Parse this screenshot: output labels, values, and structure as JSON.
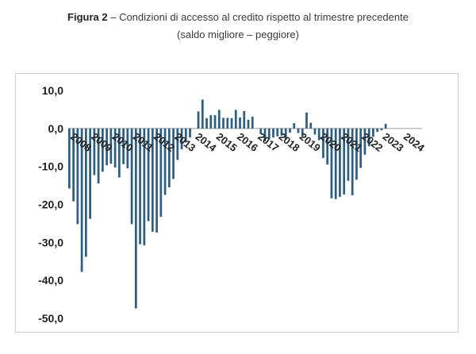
{
  "caption": {
    "bold": "Figura 2",
    "rest": " – Condizioni di accesso al credito rispetto al trimestre precedente",
    "line2": "(saldo migliore – peggiore)"
  },
  "colors": {
    "bar": "#2f5f80",
    "zero_line": "#999999",
    "axis_text": "#222222"
  },
  "chart_data": {
    "type": "bar",
    "title": "",
    "xlabel": "",
    "ylabel": "",
    "ylim": [
      -50,
      10
    ],
    "yticks": [
      10,
      0,
      -10,
      -20,
      -30,
      -40,
      -50
    ],
    "ytick_labels": [
      "10,0",
      "0,0",
      "-10,0",
      "-20,0",
      "-30,0",
      "-40,0",
      "-50,0"
    ],
    "grid": false,
    "legend": "none",
    "year_labels": [
      "2008",
      "2009",
      "2010",
      "2011",
      "2012",
      "2013",
      "2014",
      "2015",
      "2016",
      "2017",
      "2018",
      "2019",
      "2020",
      "2021",
      "2022",
      "2023",
      "2024"
    ],
    "categories": [
      "2008",
      "",
      "",
      "",
      "",
      "",
      "",
      "",
      "",
      "",
      "2009",
      "",
      "",
      "",
      "",
      "",
      "",
      "",
      "",
      "",
      "2010",
      "",
      "",
      "",
      "",
      "",
      "",
      "",
      "",
      "",
      "2011",
      "",
      "",
      "",
      "",
      "",
      "",
      "",
      "",
      "",
      "2012",
      "",
      "",
      "",
      "",
      "",
      "",
      "",
      "",
      "",
      "2013",
      "",
      "",
      "",
      "",
      "",
      "",
      "",
      "",
      "",
      "2014",
      "",
      "",
      "",
      "",
      "",
      "",
      "",
      "",
      "",
      "2015",
      "",
      "",
      "",
      "",
      "",
      "",
      "",
      "",
      "",
      "2016",
      "",
      "",
      "",
      "",
      "",
      "",
      "",
      "",
      "",
      "2017",
      "",
      "",
      "",
      "",
      "",
      "",
      "",
      "",
      "",
      "2018",
      "",
      "",
      "",
      "",
      "",
      "",
      "",
      "",
      "",
      "2019",
      "",
      "",
      "",
      "",
      "",
      "",
      "",
      "",
      "",
      "2020",
      "",
      "",
      "",
      "",
      "",
      "",
      "",
      "",
      "",
      "2021",
      "",
      "",
      "",
      "",
      "",
      "",
      "",
      "",
      "",
      "2022",
      "",
      "",
      "",
      "",
      "",
      "",
      "",
      "",
      "",
      "2023",
      "",
      "",
      "",
      "",
      "",
      "",
      "",
      "",
      "",
      "2024",
      "",
      "",
      "",
      "",
      "",
      "",
      "",
      "",
      ""
    ],
    "values": [
      -15.8,
      0,
      -19.2,
      0,
      -25.2,
      0,
      -37.8,
      0,
      -33.8,
      0,
      -23.8,
      0,
      -12.3,
      0,
      -14.5,
      0,
      -11.4,
      0,
      -9.7,
      0,
      -9.3,
      0,
      -10.3,
      0,
      -12.9,
      0,
      -9.4,
      0,
      -10.5,
      0,
      -25.2,
      0,
      -47.4,
      0,
      -30.5,
      0,
      -30.8,
      0,
      -24.4,
      0,
      -27.2,
      0,
      -27.4,
      0,
      -23.3,
      0,
      -17.5,
      0,
      -15.5,
      0,
      -13.3,
      0,
      -8.3,
      0,
      -5.5,
      0,
      -3.7,
      0,
      -2.4,
      0,
      0,
      0,
      4.5,
      0,
      7.6,
      0,
      2.7,
      0,
      3.5,
      0,
      3.5,
      0,
      4.9,
      0,
      2.8,
      0,
      2.8,
      0,
      2.7,
      0,
      4.9,
      0,
      2.9,
      0,
      4.6,
      0,
      2.3,
      0,
      3.1,
      0,
      0,
      0,
      -1.5,
      0,
      -3.4,
      0,
      -2.9,
      0,
      -2.4,
      0,
      -2.1,
      0,
      -1.9,
      0,
      -2.8,
      0,
      -1.1,
      0,
      1.4,
      0,
      -1.2,
      0,
      -2.1,
      0,
      4.2,
      0,
      1.5,
      0,
      -1.6,
      0,
      -3.1,
      0,
      -7.8,
      0,
      -9.5,
      0,
      -18.4,
      0,
      -18.6,
      0,
      -18.0,
      0,
      -17.4,
      0,
      -13.8,
      0,
      -17.6,
      0,
      -13.5,
      0,
      -10.4,
      0,
      -6.9,
      0,
      -4.7,
      0,
      -2.2,
      0,
      -0.9,
      0,
      -0.5,
      0,
      1.2,
      0,
      0,
      0,
      0,
      0,
      0,
      0,
      0,
      0,
      0,
      0,
      0,
      0,
      0,
      0,
      0,
      0
    ]
  }
}
